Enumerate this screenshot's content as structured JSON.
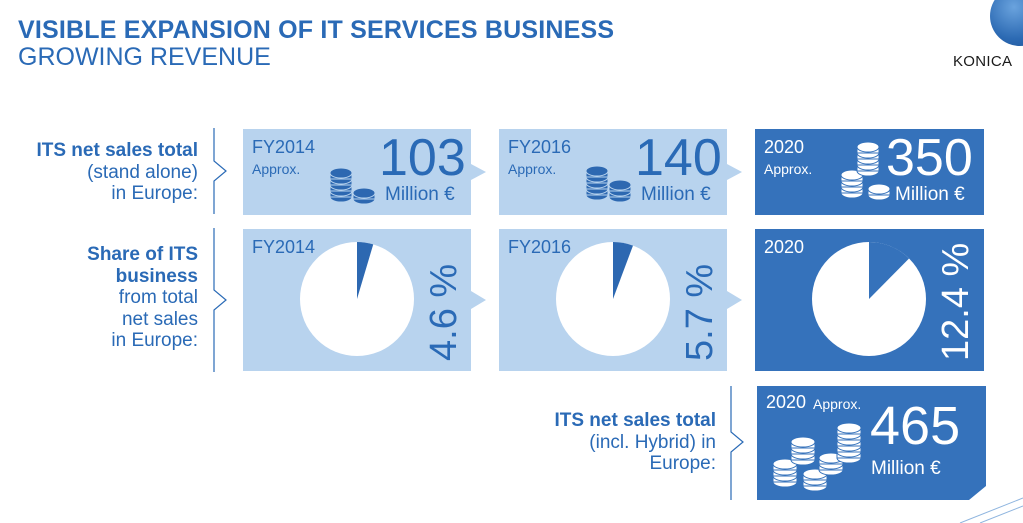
{
  "header": {
    "title": "VISIBLE EXPANSION OF IT SERVICES BUSINESS",
    "subtitle": "GROWING REVENUE",
    "logo_text": "KONICA"
  },
  "rows": {
    "sales": {
      "bold": "ITS net sales total",
      "lines": [
        "(stand alone)",
        "in Europe:"
      ]
    },
    "share": {
      "bold_lines": [
        "Share of ITS",
        "business"
      ],
      "lines": [
        "from total",
        "net sales",
        "in Europe:"
      ]
    },
    "hybrid": {
      "bold": "ITS net sales total",
      "lines": [
        "(incl. Hybrid) in",
        "Europe:"
      ]
    }
  },
  "sales_cards": [
    {
      "year": "FY2014",
      "approx": "Approx.",
      "value": "103",
      "unit": "Million €"
    },
    {
      "year": "FY2016",
      "approx": "Approx.",
      "value": "140",
      "unit": "Million €"
    },
    {
      "year": "2020",
      "approx": "Approx.",
      "value": "350",
      "unit": "Million €"
    }
  ],
  "share_cards": [
    {
      "year": "FY2014",
      "percent_label": "4.6 %",
      "percent": 4.6
    },
    {
      "year": "FY2016",
      "percent_label": "5.7 %",
      "percent": 5.7
    },
    {
      "year": "2020",
      "percent_label": "12.4 %",
      "percent": 12.4
    }
  ],
  "hybrid_card": {
    "year": "2020",
    "approx": "Approx.",
    "value": "465",
    "unit": "Million €"
  },
  "colors": {
    "light_card": "#b8d3ee",
    "dark_card": "#3572bb",
    "accent": "#2a6ab6",
    "coin": "#2d68b1"
  }
}
